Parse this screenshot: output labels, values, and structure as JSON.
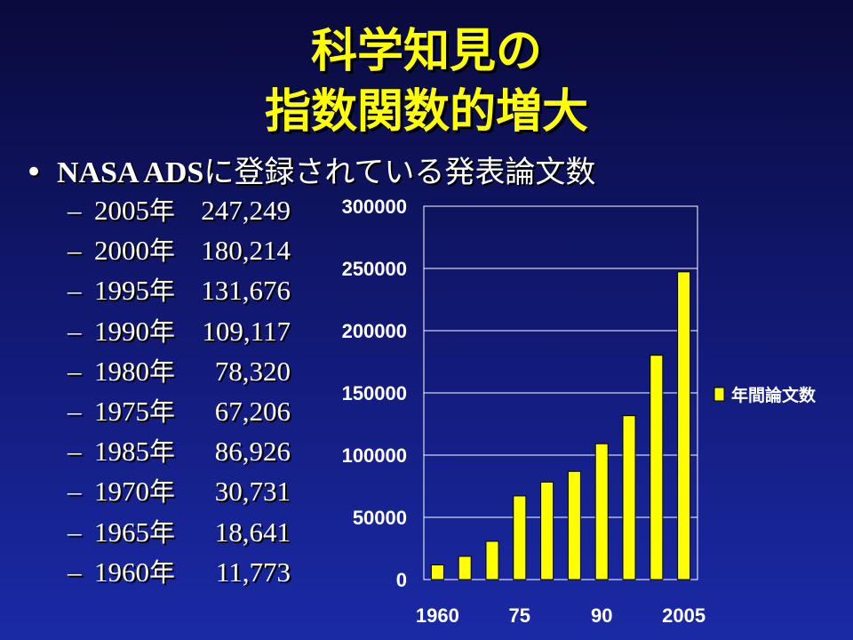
{
  "title": {
    "line1": "科学知見の",
    "line2": "指数関数的増大"
  },
  "bullet": {
    "marker": "•",
    "latin": "NASA ADS",
    "japanese": "に登録されている発表論文数"
  },
  "list_items": [
    {
      "dash": "–",
      "year": "2005",
      "suffix": "年",
      "count": "247,249"
    },
    {
      "dash": "–",
      "year": "2000",
      "suffix": "年",
      "count": "180,214"
    },
    {
      "dash": "–",
      "year": "1995",
      "suffix": "年",
      "count": "131,676"
    },
    {
      "dash": "–",
      "year": "1990",
      "suffix": "年",
      "count": "109,117"
    },
    {
      "dash": "–",
      "year": "1980",
      "suffix": "年",
      "count": "78,320"
    },
    {
      "dash": "–",
      "year": "1975",
      "suffix": "年",
      "count": "67,206"
    },
    {
      "dash": "–",
      "year": "1985",
      "suffix": "年",
      "count": "86,926"
    },
    {
      "dash": "–",
      "year": "1970",
      "suffix": "年",
      "count": "30,731"
    },
    {
      "dash": "–",
      "year": "1965",
      "suffix": "年",
      "count": "18,641"
    },
    {
      "dash": "–",
      "year": "1960",
      "suffix": "年",
      "count": "11,773"
    }
  ],
  "chart_data": {
    "type": "bar",
    "categories": [
      "1960",
      "1965",
      "1970",
      "1975",
      "1980",
      "1985",
      "1990",
      "1995",
      "2000",
      "2005"
    ],
    "series": [
      {
        "name": "年間論文数",
        "values": [
          11773,
          18641,
          30731,
          67206,
          78320,
          86926,
          109117,
          131676,
          180214,
          247249
        ]
      }
    ],
    "x_tick_labels": [
      "1960",
      "",
      "",
      "75",
      "",
      "",
      "90",
      "",
      "",
      "2005"
    ],
    "y_ticks": [
      "0",
      "50000",
      "100000",
      "150000",
      "200000",
      "250000",
      "300000"
    ],
    "ylim": [
      0,
      300000
    ],
    "grid": true,
    "legend_position": "right",
    "bar_color": "#ffff00",
    "bar_edge_color": "#000000",
    "plot_border_color": "#ffffff"
  }
}
